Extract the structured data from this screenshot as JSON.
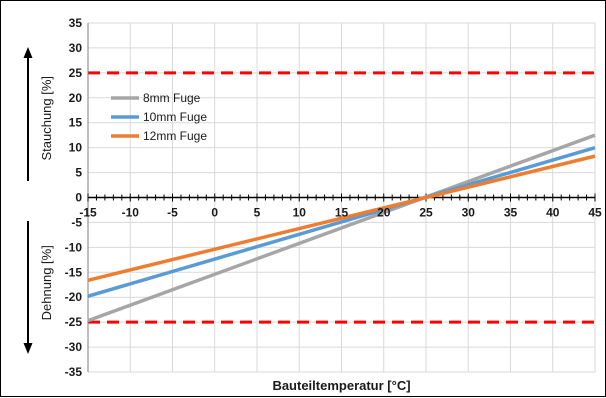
{
  "chart_data": {
    "type": "line",
    "title": "",
    "xlabel": "Bauteiltemperatur [°C]",
    "ylabel_top": "Stauchung [%]",
    "ylabel_bottom": "Dehnung [%]",
    "xlim": [
      -15,
      45
    ],
    "ylim": [
      -35,
      35
    ],
    "x_ticks": [
      "-15",
      "-10",
      "-5",
      "0",
      "5",
      "10",
      "15",
      "20",
      "25",
      "30",
      "35",
      "40",
      "45"
    ],
    "y_ticks": [
      "35",
      "30",
      "25",
      "20",
      "15",
      "10",
      "5",
      "0",
      "-5",
      "-10",
      "-15",
      "-20",
      "-25",
      "-30",
      "-35"
    ],
    "grid": true,
    "legend_position": "upper-left",
    "series": [
      {
        "name": "8mm Fuge",
        "color": "#a6a6a6",
        "x": [
          -15,
          45
        ],
        "y": [
          -24.7,
          12.5
        ]
      },
      {
        "name": "10mm Fuge",
        "color": "#5b9bd5",
        "x": [
          -15,
          45
        ],
        "y": [
          -19.8,
          10.0
        ]
      },
      {
        "name": "12mm Fuge",
        "color": "#ed7d31",
        "x": [
          -15,
          45
        ],
        "y": [
          -16.6,
          8.3
        ]
      }
    ],
    "reference_lines": [
      {
        "y": 25,
        "color": "#ff0000",
        "style": "dashed"
      },
      {
        "y": -25,
        "color": "#ff0000",
        "style": "dashed"
      }
    ]
  }
}
